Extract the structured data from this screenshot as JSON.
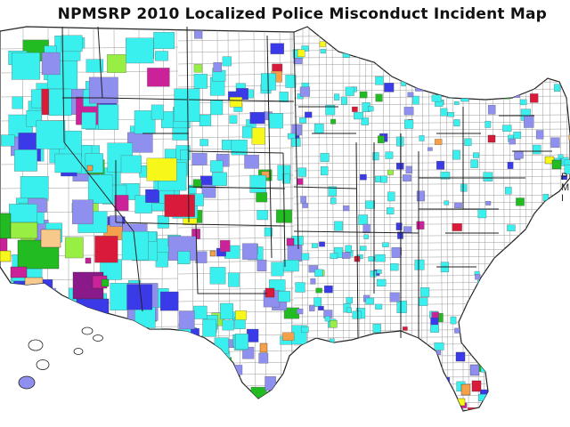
{
  "title": "NPMSRP 2010 Localized Police Misconduct Incident Map",
  "edge_text": [
    "P",
    "M",
    "I"
  ],
  "palette": {
    "background": "#ffffff",
    "land": "#ffffff",
    "county_border": "#9a9a9a",
    "state_border": "#222222",
    "cyan": "#39f0ef",
    "periwinkle": "#8f8ff0",
    "blue": "#3a3ae8",
    "green": "#22bb22",
    "lime": "#99ee44",
    "magenta": "#cc2299",
    "purple": "#8a1a8a",
    "orange": "#f5a04a",
    "peach": "#f7c98a",
    "yellow": "#f7f71a",
    "red": "#d91a3a"
  },
  "legend_categories": [
    "cyan",
    "periwinkle",
    "blue",
    "green",
    "lime",
    "magenta",
    "purple",
    "orange",
    "peach",
    "yellow",
    "red"
  ]
}
